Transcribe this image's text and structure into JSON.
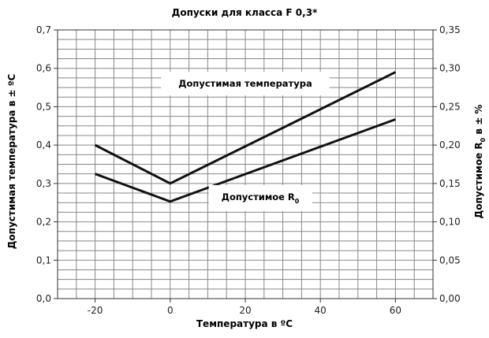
{
  "chart_data": {
    "type": "line",
    "title": "Допуски для класса F 0,3*",
    "xlabel": "Температура в ºС",
    "ylabel_left": "Допустимая температура в ± ºС",
    "ylabel_right_prefix": "Допустимое R",
    "ylabel_right_sub": "0",
    "ylabel_right_suffix": " в ± %",
    "xlim": [
      -30,
      70
    ],
    "ylim_left": [
      0,
      0.7
    ],
    "ylim_right": [
      0,
      0.35
    ],
    "x_ticks": [
      "-20",
      "0",
      "20",
      "40",
      "60"
    ],
    "x_tick_values": [
      -20,
      0,
      20,
      40,
      60
    ],
    "y_left_ticks": [
      "0,0",
      "0,1",
      "0,2",
      "0,3",
      "0,4",
      "0,5",
      "0,6",
      "0,7"
    ],
    "y_right_ticks": [
      "0,00",
      "0,05",
      "0,10",
      "0,15",
      "0,20",
      "0,25",
      "0,30",
      "0,35"
    ],
    "grid": true,
    "series": [
      {
        "name": "Допустимая температура",
        "axis": "left",
        "x": [
          -20,
          0,
          60
        ],
        "y": [
          0.4,
          0.3,
          0.59
        ]
      },
      {
        "name": "Допустимое R",
        "name_sub": "0",
        "axis": "right",
        "x": [
          -20,
          0,
          60
        ],
        "y": [
          0.1625,
          0.1265,
          0.2335
        ]
      }
    ]
  }
}
